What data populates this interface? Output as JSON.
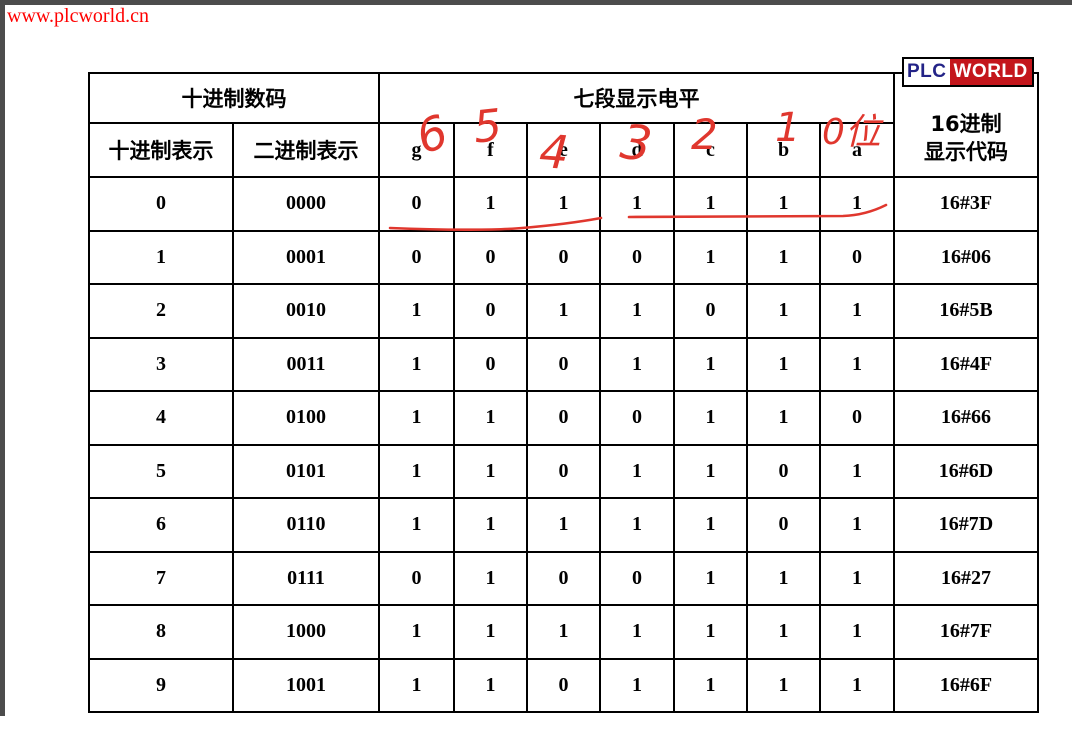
{
  "page": {
    "watermark": "www.plcworld.cn"
  },
  "logo": {
    "part1": "PLC",
    "part2": "WORLD"
  },
  "colors": {
    "watermark_red": "#ff0000",
    "annotation_red": "#e0372e",
    "logo_navy": "#232387",
    "logo_red": "#c4161c",
    "edge_gray": "#4c4c4c",
    "table_border": "#000000"
  },
  "table": {
    "header": {
      "group_decimal": "十进制数码",
      "group_segments": "七段显示电平",
      "hex_line1": "16进制",
      "hex_line2": "显示代码",
      "decimal_col": "十进制表示",
      "binary_col": "二进制表示",
      "segment_cols": [
        "g",
        "f",
        "e",
        "d",
        "c",
        "b",
        "a"
      ]
    },
    "rows": [
      {
        "dec": "0",
        "bin": "0000",
        "seg": [
          "0",
          "1",
          "1",
          "1",
          "1",
          "1",
          "1"
        ],
        "hex": "16#3F"
      },
      {
        "dec": "1",
        "bin": "0001",
        "seg": [
          "0",
          "0",
          "0",
          "0",
          "1",
          "1",
          "0"
        ],
        "hex": "16#06"
      },
      {
        "dec": "2",
        "bin": "0010",
        "seg": [
          "1",
          "0",
          "1",
          "1",
          "0",
          "1",
          "1"
        ],
        "hex": "16#5B"
      },
      {
        "dec": "3",
        "bin": "0011",
        "seg": [
          "1",
          "0",
          "0",
          "1",
          "1",
          "1",
          "1"
        ],
        "hex": "16#4F"
      },
      {
        "dec": "4",
        "bin": "0100",
        "seg": [
          "1",
          "1",
          "0",
          "0",
          "1",
          "1",
          "0"
        ],
        "hex": "16#66"
      },
      {
        "dec": "5",
        "bin": "0101",
        "seg": [
          "1",
          "1",
          "0",
          "1",
          "1",
          "0",
          "1"
        ],
        "hex": "16#6D"
      },
      {
        "dec": "6",
        "bin": "0110",
        "seg": [
          "1",
          "1",
          "1",
          "1",
          "1",
          "0",
          "1"
        ],
        "hex": "16#7D"
      },
      {
        "dec": "7",
        "bin": "0111",
        "seg": [
          "0",
          "1",
          "0",
          "0",
          "1",
          "1",
          "1"
        ],
        "hex": "16#27"
      },
      {
        "dec": "8",
        "bin": "1000",
        "seg": [
          "1",
          "1",
          "1",
          "1",
          "1",
          "1",
          "1"
        ],
        "hex": "16#7F"
      },
      {
        "dec": "9",
        "bin": "1001",
        "seg": [
          "1",
          "1",
          "0",
          "1",
          "1",
          "1",
          "1"
        ],
        "hex": "16#6F"
      }
    ]
  },
  "annotations": {
    "bit_labels": [
      "6",
      "5",
      "4",
      "3",
      "2",
      "1",
      "0位"
    ]
  }
}
